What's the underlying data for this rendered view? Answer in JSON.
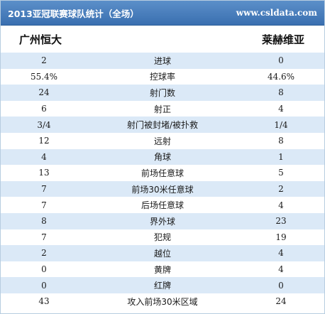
{
  "header": {
    "title": "2013亚冠联赛球队统计（全场）",
    "site": "www.csldata.com"
  },
  "teams": {
    "home": "广州恒大",
    "away": "莱赫维亚"
  },
  "stats": [
    {
      "home": "2",
      "label": "进球",
      "away": "0"
    },
    {
      "home": "55.4%",
      "label": "控球率",
      "away": "44.6%"
    },
    {
      "home": "24",
      "label": "射门数",
      "away": "8"
    },
    {
      "home": "6",
      "label": "射正",
      "away": "4"
    },
    {
      "home": "3/4",
      "label": "射门被封堵/被扑救",
      "away": "1/4"
    },
    {
      "home": "12",
      "label": "远射",
      "away": "8"
    },
    {
      "home": "4",
      "label": "角球",
      "away": "1"
    },
    {
      "home": "13",
      "label": "前场任意球",
      "away": "5"
    },
    {
      "home": "7",
      "label": "前场30米任意球",
      "away": "2"
    },
    {
      "home": "7",
      "label": "后场任意球",
      "away": "4"
    },
    {
      "home": "8",
      "label": "界外球",
      "away": "23"
    },
    {
      "home": "7",
      "label": "犯规",
      "away": "19"
    },
    {
      "home": "2",
      "label": "越位",
      "away": "4"
    },
    {
      "home": "0",
      "label": "黄牌",
      "away": "4"
    },
    {
      "home": "0",
      "label": "红牌",
      "away": "0"
    },
    {
      "home": "43",
      "label": "攻入前场30米区域",
      "away": "24"
    }
  ]
}
